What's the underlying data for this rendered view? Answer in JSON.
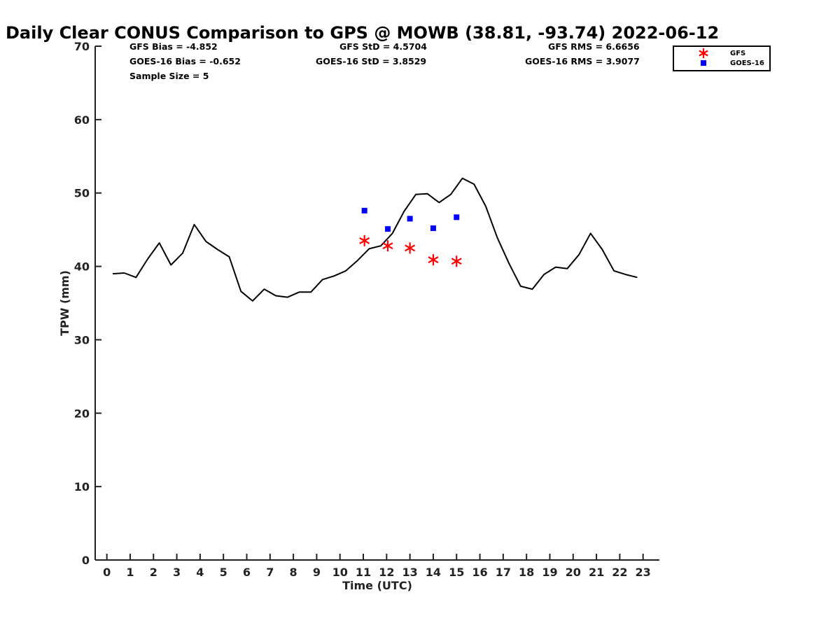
{
  "chart_data": {
    "type": "line",
    "title": "Daily Clear CONUS Comparison to GPS @ MOWB (38.81, -93.74) 2022-06-12",
    "xlabel": "Time (UTC)",
    "ylabel": "TPW (mm)",
    "xlim": [
      -0.5,
      23.7
    ],
    "ylim": [
      0,
      70
    ],
    "xticks": [
      "0",
      "1",
      "2",
      "3",
      "4",
      "5",
      "6",
      "7",
      "8",
      "9",
      "10",
      "11",
      "12",
      "13",
      "14",
      "15",
      "16",
      "17",
      "18",
      "19",
      "20",
      "21",
      "22",
      "23"
    ],
    "yticks": [
      "0",
      "10",
      "20",
      "30",
      "40",
      "50",
      "60",
      "70"
    ],
    "grid": false,
    "legend_position": "top-right",
    "stats": {
      "gfs_bias": "GFS Bias = -4.852",
      "goes_bias": "GOES-16 Bias = -0.652",
      "sample_size": "Sample Size = 5",
      "gfs_std": "GFS StD = 4.5704",
      "goes_std": "GOES-16 StD = 3.8529",
      "gfs_rms": "GFS RMS = 6.6656",
      "goes_rms": "GOES-16 RMS = 3.9077"
    },
    "series": [
      {
        "kind": "line",
        "color": "#000000",
        "x": [
          0.25,
          0.75,
          1.25,
          1.75,
          2.25,
          2.75,
          3.25,
          3.75,
          4.25,
          4.75,
          5.25,
          5.75,
          6.25,
          6.75,
          7.25,
          7.75,
          8.25,
          8.75,
          9.25,
          9.75,
          10.25,
          10.75,
          11.25,
          11.75,
          12.25,
          12.75,
          13.25,
          13.75,
          14.25,
          14.75,
          15.25,
          15.75,
          16.25,
          16.75,
          17.25,
          17.75,
          18.25,
          18.75,
          19.25,
          19.75,
          20.25,
          20.75,
          21.25,
          21.75,
          22.25,
          22.75
        ],
        "y": [
          39.0,
          39.1,
          38.5,
          41.0,
          43.2,
          40.2,
          41.8,
          45.7,
          43.4,
          42.3,
          41.3,
          36.6,
          35.3,
          36.9,
          36.0,
          35.8,
          36.5,
          36.5,
          38.2,
          38.7,
          39.4,
          40.8,
          42.4,
          42.8,
          44.5,
          47.5,
          49.8,
          49.9,
          48.7,
          49.8,
          52.0,
          51.2,
          48.2,
          43.9,
          40.4,
          37.3,
          36.9,
          38.9,
          39.9,
          39.7,
          41.6,
          44.5,
          42.3,
          39.4,
          38.9,
          38.5
        ]
      },
      {
        "name": "GFS",
        "kind": "scatter",
        "marker": "asterisk",
        "color": "#ff0000",
        "x": [
          11.05,
          12.05,
          13.0,
          14.0,
          15.0
        ],
        "y": [
          43.5,
          42.8,
          42.5,
          40.9,
          40.7
        ]
      },
      {
        "name": "GOES-16",
        "kind": "scatter",
        "marker": "square",
        "color": "#0000ff",
        "x": [
          11.05,
          12.05,
          13.0,
          14.0,
          15.0
        ],
        "y": [
          47.6,
          45.1,
          46.5,
          45.2,
          46.7
        ]
      }
    ]
  }
}
